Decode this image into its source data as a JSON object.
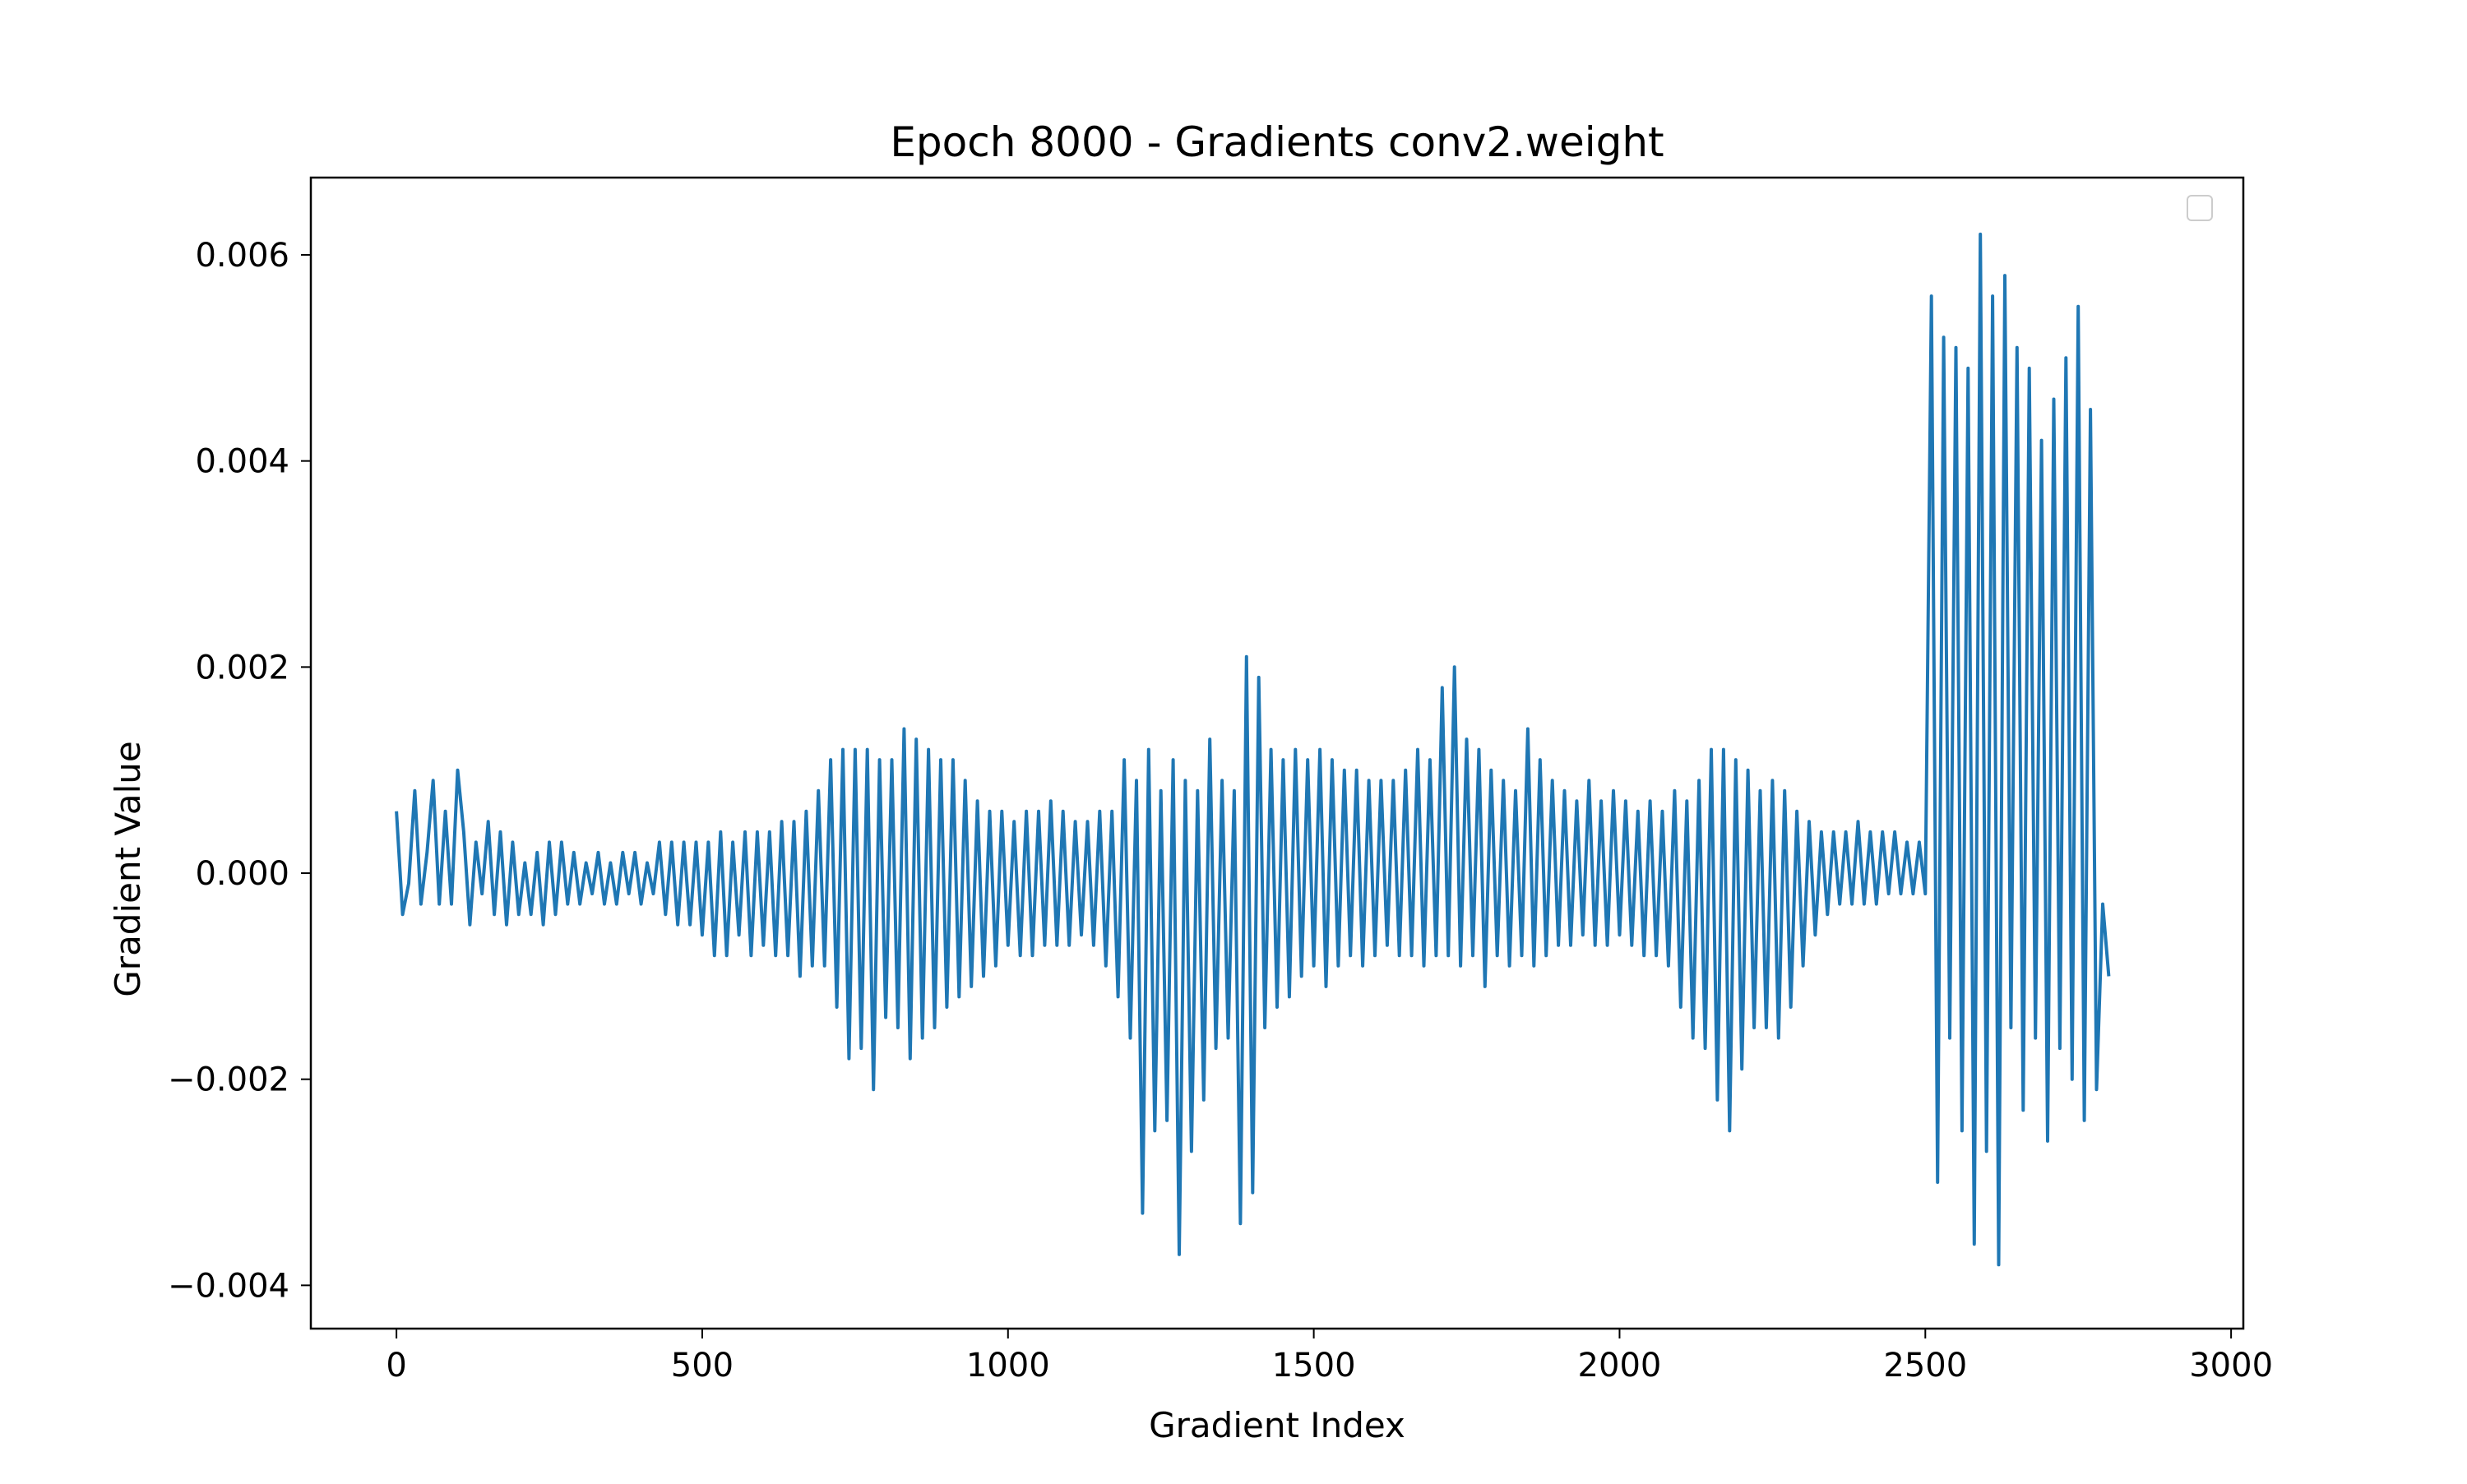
{
  "chart_data": {
    "type": "line",
    "title": "Epoch 8000 - Gradients conv2.weight",
    "xlabel": "Gradient Index",
    "ylabel": "Gradient Value",
    "xlim": [
      -140,
      3020
    ],
    "ylim": [
      -0.00442,
      0.00675
    ],
    "x_ticks": [
      0,
      500,
      1000,
      1500,
      2000,
      2500,
      3000
    ],
    "x_tick_labels": [
      "0",
      "500",
      "1000",
      "1500",
      "2000",
      "2500",
      "3000"
    ],
    "y_ticks": [
      -0.004,
      -0.002,
      0.0,
      0.002,
      0.004,
      0.006
    ],
    "y_tick_labels": [
      "−0.004",
      "−0.002",
      "0.000",
      "0.002",
      "0.004",
      "0.006"
    ],
    "grid": false,
    "legend": {
      "position": "top-right",
      "entries": []
    },
    "series": [
      {
        "color": "#1f77b4",
        "x_start": 0,
        "x_step": 10,
        "values": [
          0.0006,
          -0.0004,
          -0.0001,
          0.0008,
          -0.0003,
          0.0002,
          0.0009,
          -0.0003,
          0.0006,
          -0.0003,
          0.001,
          0.0004,
          -0.0005,
          0.0003,
          -0.0002,
          0.0005,
          -0.0004,
          0.0004,
          -0.0005,
          0.0003,
          -0.0004,
          0.0001,
          -0.0004,
          0.0002,
          -0.0005,
          0.0003,
          -0.0004,
          0.0003,
          -0.0003,
          0.0002,
          -0.0003,
          0.0001,
          -0.0002,
          0.0002,
          -0.0003,
          0.0001,
          -0.0003,
          0.0002,
          -0.0002,
          0.0002,
          -0.0003,
          0.0001,
          -0.0002,
          0.0003,
          -0.0004,
          0.0003,
          -0.0005,
          0.0003,
          -0.0005,
          0.0003,
          -0.0006,
          0.0003,
          -0.0008,
          0.0004,
          -0.0008,
          0.0003,
          -0.0006,
          0.0004,
          -0.0008,
          0.0004,
          -0.0007,
          0.0004,
          -0.0008,
          0.0005,
          -0.0008,
          0.0005,
          -0.001,
          0.0006,
          -0.0009,
          0.0008,
          -0.0009,
          0.0011,
          -0.0013,
          0.0012,
          -0.0018,
          0.0012,
          -0.0017,
          0.0012,
          -0.0021,
          0.0011,
          -0.0014,
          0.0011,
          -0.0015,
          0.0014,
          -0.0018,
          0.0013,
          -0.0016,
          0.0012,
          -0.0015,
          0.0011,
          -0.0013,
          0.0011,
          -0.0012,
          0.0009,
          -0.0011,
          0.0007,
          -0.001,
          0.0006,
          -0.0009,
          0.0006,
          -0.0007,
          0.0005,
          -0.0008,
          0.0006,
          -0.0008,
          0.0006,
          -0.0007,
          0.0007,
          -0.0007,
          0.0006,
          -0.0007,
          0.0005,
          -0.0006,
          0.0005,
          -0.0007,
          0.0006,
          -0.0009,
          0.0006,
          -0.0012,
          0.0011,
          -0.0016,
          0.0009,
          -0.0033,
          0.0012,
          -0.0025,
          0.0008,
          -0.0024,
          0.0011,
          -0.0037,
          0.0009,
          -0.0027,
          0.0008,
          -0.0022,
          0.0013,
          -0.0017,
          0.0009,
          -0.0016,
          0.0008,
          -0.0034,
          0.0021,
          -0.0031,
          0.0019,
          -0.0015,
          0.0012,
          -0.0013,
          0.0011,
          -0.0012,
          0.0012,
          -0.001,
          0.0011,
          -0.0009,
          0.0012,
          -0.0011,
          0.0011,
          -0.0009,
          0.001,
          -0.0008,
          0.001,
          -0.0009,
          0.0009,
          -0.0008,
          0.0009,
          -0.0007,
          0.0009,
          -0.0008,
          0.001,
          -0.0008,
          0.0012,
          -0.0009,
          0.0011,
          -0.0008,
          0.0018,
          -0.0008,
          0.002,
          -0.0009,
          0.0013,
          -0.0008,
          0.0012,
          -0.0011,
          0.001,
          -0.0008,
          0.0009,
          -0.0009,
          0.0008,
          -0.0008,
          0.0014,
          -0.0009,
          0.0011,
          -0.0008,
          0.0009,
          -0.0007,
          0.0008,
          -0.0007,
          0.0007,
          -0.0006,
          0.0009,
          -0.0007,
          0.0007,
          -0.0007,
          0.0008,
          -0.0006,
          0.0007,
          -0.0007,
          0.0006,
          -0.0008,
          0.0007,
          -0.0008,
          0.0006,
          -0.0009,
          0.0008,
          -0.0013,
          0.0007,
          -0.0016,
          0.0009,
          -0.0017,
          0.0012,
          -0.0022,
          0.0012,
          -0.0025,
          0.0011,
          -0.0019,
          0.001,
          -0.0015,
          0.0008,
          -0.0015,
          0.0009,
          -0.0016,
          0.0008,
          -0.0013,
          0.0006,
          -0.0009,
          0.0005,
          -0.0006,
          0.0004,
          -0.0004,
          0.0004,
          -0.0003,
          0.0004,
          -0.0003,
          0.0005,
          -0.0003,
          0.0004,
          -0.0003,
          0.0004,
          -0.0002,
          0.0004,
          -0.0002,
          0.0003,
          -0.0002,
          0.0003,
          -0.0002,
          0.0056,
          -0.003,
          0.0052,
          -0.0016,
          0.0051,
          -0.0025,
          0.0049,
          -0.0036,
          0.0062,
          -0.0027,
          0.0056,
          -0.0038,
          0.0058,
          -0.0015,
          0.0051,
          -0.0023,
          0.0049,
          -0.0016,
          0.0042,
          -0.0026,
          0.0046,
          -0.0017,
          0.005,
          -0.002,
          0.0055,
          -0.0024,
          0.0045,
          -0.0021,
          -0.0003,
          -0.001
        ]
      }
    ]
  }
}
